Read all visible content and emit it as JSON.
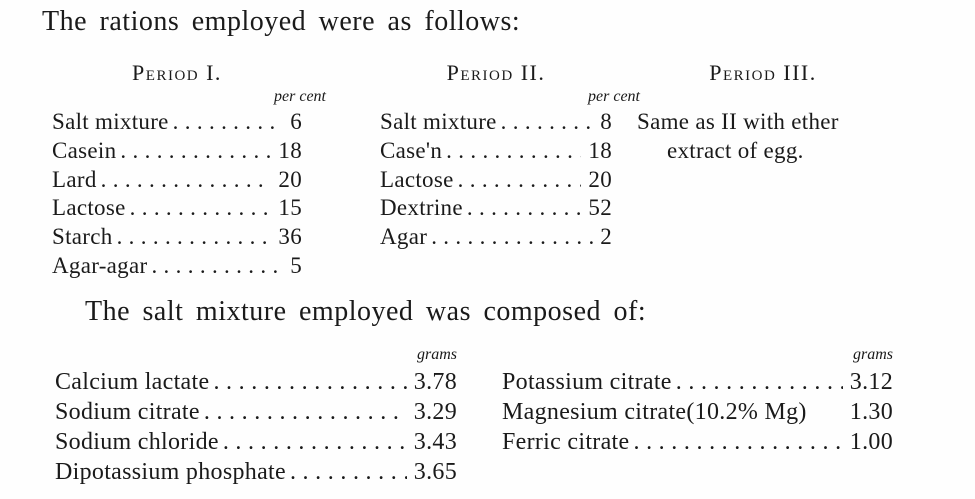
{
  "colors": {
    "paper": "#fefefe",
    "ink": "#1a1a1a"
  },
  "page": {
    "intro_text": "The rations employed were as follows:",
    "salt_intro_text": "The salt mixture employed was composed of:"
  },
  "rations_table": {
    "unit_label": "per cent",
    "period1": {
      "title": "Period I.",
      "rows": [
        {
          "label": "Salt mixture",
          "value": "6"
        },
        {
          "label": "Casein",
          "value": "18"
        },
        {
          "label": "Lard",
          "value": "20"
        },
        {
          "label": "Lactose",
          "value": "15"
        },
        {
          "label": "Starch",
          "value": "36"
        },
        {
          "label": "Agar-agar",
          "value": "5"
        }
      ]
    },
    "period2": {
      "title": "Period II.",
      "rows": [
        {
          "label": "Salt mixture",
          "value": "8"
        },
        {
          "label": "Case'n",
          "value": "18"
        },
        {
          "label": "Lactose",
          "value": "20"
        },
        {
          "label": "Dextrine",
          "value": "52"
        },
        {
          "label": "Agar",
          "value": "2"
        }
      ]
    },
    "period3": {
      "title": "Period III.",
      "note_line1": "Same as II with ether",
      "note_line2": "extract of egg."
    }
  },
  "salt_table": {
    "unit_label": "grams",
    "left_rows": [
      {
        "label": "Calcium lactate",
        "value": "3.78"
      },
      {
        "label": "Sodium citrate",
        "value": "3.29"
      },
      {
        "label": "Sodium chloride",
        "value": "3.43"
      },
      {
        "label": "Dipotassium phosphate",
        "value": "3.65"
      }
    ],
    "right_rows": [
      {
        "label": "Potassium citrate",
        "value": "3.12"
      },
      {
        "label": "Magnesium citrate(10.2% Mg)",
        "value": "1.30"
      },
      {
        "label": "Ferric citrate",
        "value": "1.00"
      }
    ]
  }
}
